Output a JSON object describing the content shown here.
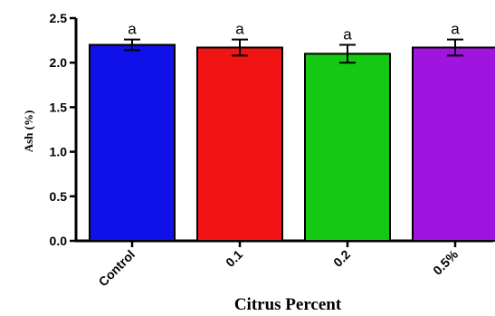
{
  "chart_data": {
    "type": "bar",
    "xlabel": "Citrus Percent",
    "ylabel": "Ash (%)",
    "ylim": [
      0,
      2.5
    ],
    "yticks": [
      "0.0",
      "0.5",
      "1.0",
      "1.5",
      "2.0",
      "2.5"
    ],
    "categories": [
      "Control",
      "0.1",
      "0.2",
      "0.5%"
    ],
    "values": [
      2.2,
      2.17,
      2.1,
      2.17
    ],
    "errors": [
      0.06,
      0.09,
      0.1,
      0.09
    ],
    "significance": [
      "a",
      "a",
      "a",
      "a"
    ],
    "colors": [
      "#1010e8",
      "#f01414",
      "#14c814",
      "#a014e0"
    ],
    "grid": false
  }
}
